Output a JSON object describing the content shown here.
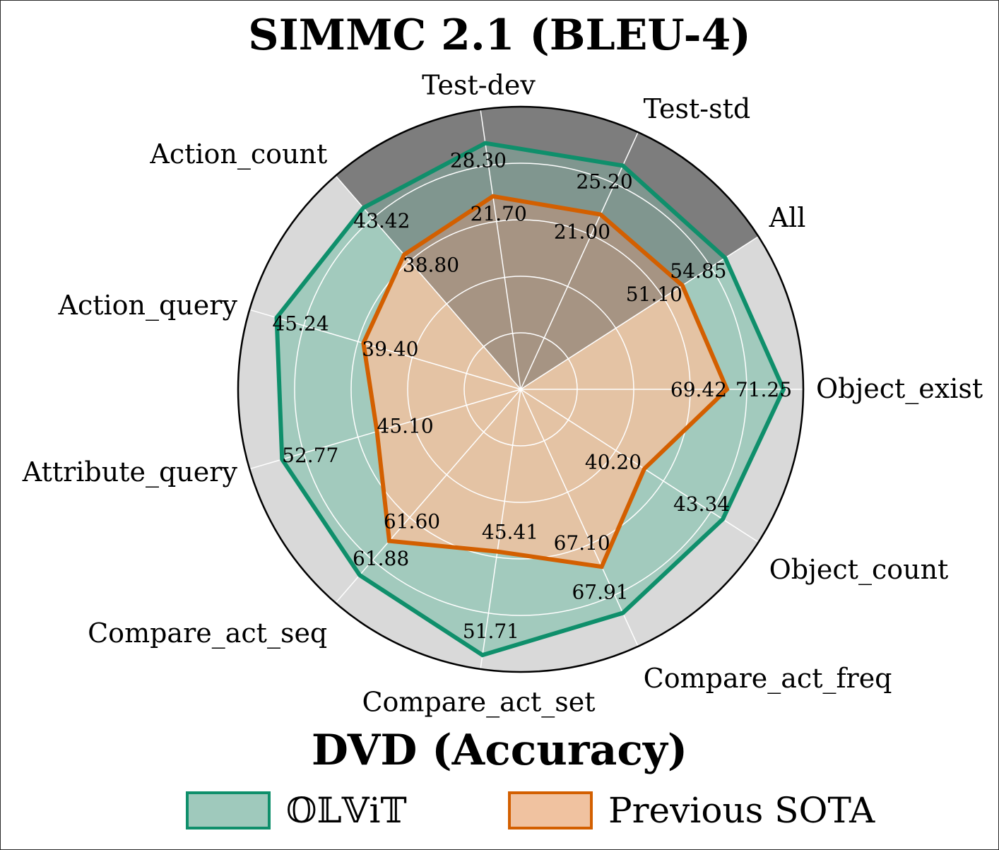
{
  "chart_data": {
    "type": "radar",
    "title": "SIMMC 2.1 (BLEU-4)",
    "subtitle": "DVD (Accuracy)",
    "axes": [
      "Object_exist",
      "All",
      "Test-std",
      "Test-dev",
      "Action_count",
      "Action_query",
      "Attribute_query",
      "Compare_act_seq",
      "Compare_act_set",
      "Compare_act_freq",
      "Object_count"
    ],
    "axis_groups": {
      "SIMMC 2.1 (BLEU-4)": [
        "Test-std",
        "Test-dev"
      ],
      "DVD (Accuracy)": [
        "Object_exist",
        "All",
        "Action_count",
        "Action_query",
        "Attribute_query",
        "Compare_act_seq",
        "Compare_act_set",
        "Compare_act_freq",
        "Object_count"
      ]
    },
    "series": [
      {
        "name": "𝕆𝕃𝕍i𝕋",
        "values": [
          71.25,
          54.85,
          25.2,
          28.3,
          43.42,
          45.24,
          52.77,
          61.88,
          51.71,
          67.91,
          43.34
        ],
        "labels": [
          "71.25",
          "54.85",
          "25.20",
          "28.30",
          "43.42",
          "45.24",
          "52.77",
          "61.88",
          "51.71",
          "67.91",
          "43.34"
        ],
        "normalized": [
          0.93,
          0.86,
          0.87,
          0.88,
          0.85,
          0.9,
          0.88,
          0.87,
          0.95,
          0.87,
          0.85
        ],
        "line_color": "#0f8f6b",
        "fill_color": "#9fc9bc"
      },
      {
        "name": "Previous SOTA",
        "values": [
          69.42,
          51.1,
          21.0,
          21.7,
          38.8,
          39.4,
          45.1,
          61.6,
          45.41,
          67.1,
          40.2
        ],
        "labels": [
          "69.42",
          "51.10",
          "21.00",
          "21.70",
          "38.80",
          "39.40",
          "45.10",
          "61.60",
          "45.41",
          "67.10",
          "40.20"
        ],
        "normalized": [
          0.73,
          0.68,
          0.68,
          0.69,
          0.63,
          0.58,
          0.53,
          0.71,
          0.58,
          0.69,
          0.52
        ],
        "line_color": "#d35f00",
        "fill_color": "#f0c2a0"
      }
    ],
    "grid": true,
    "legend_position": "bottom",
    "colors": {
      "outer_ring": "#d9d9d9",
      "outer_ring_simmc": "#999999",
      "inner_overlay_simmc": "#5a5a5a"
    }
  },
  "legend": {
    "olvit_label": "𝕆𝕃𝕍i𝕋",
    "sota_label": "Previous SOTA"
  }
}
